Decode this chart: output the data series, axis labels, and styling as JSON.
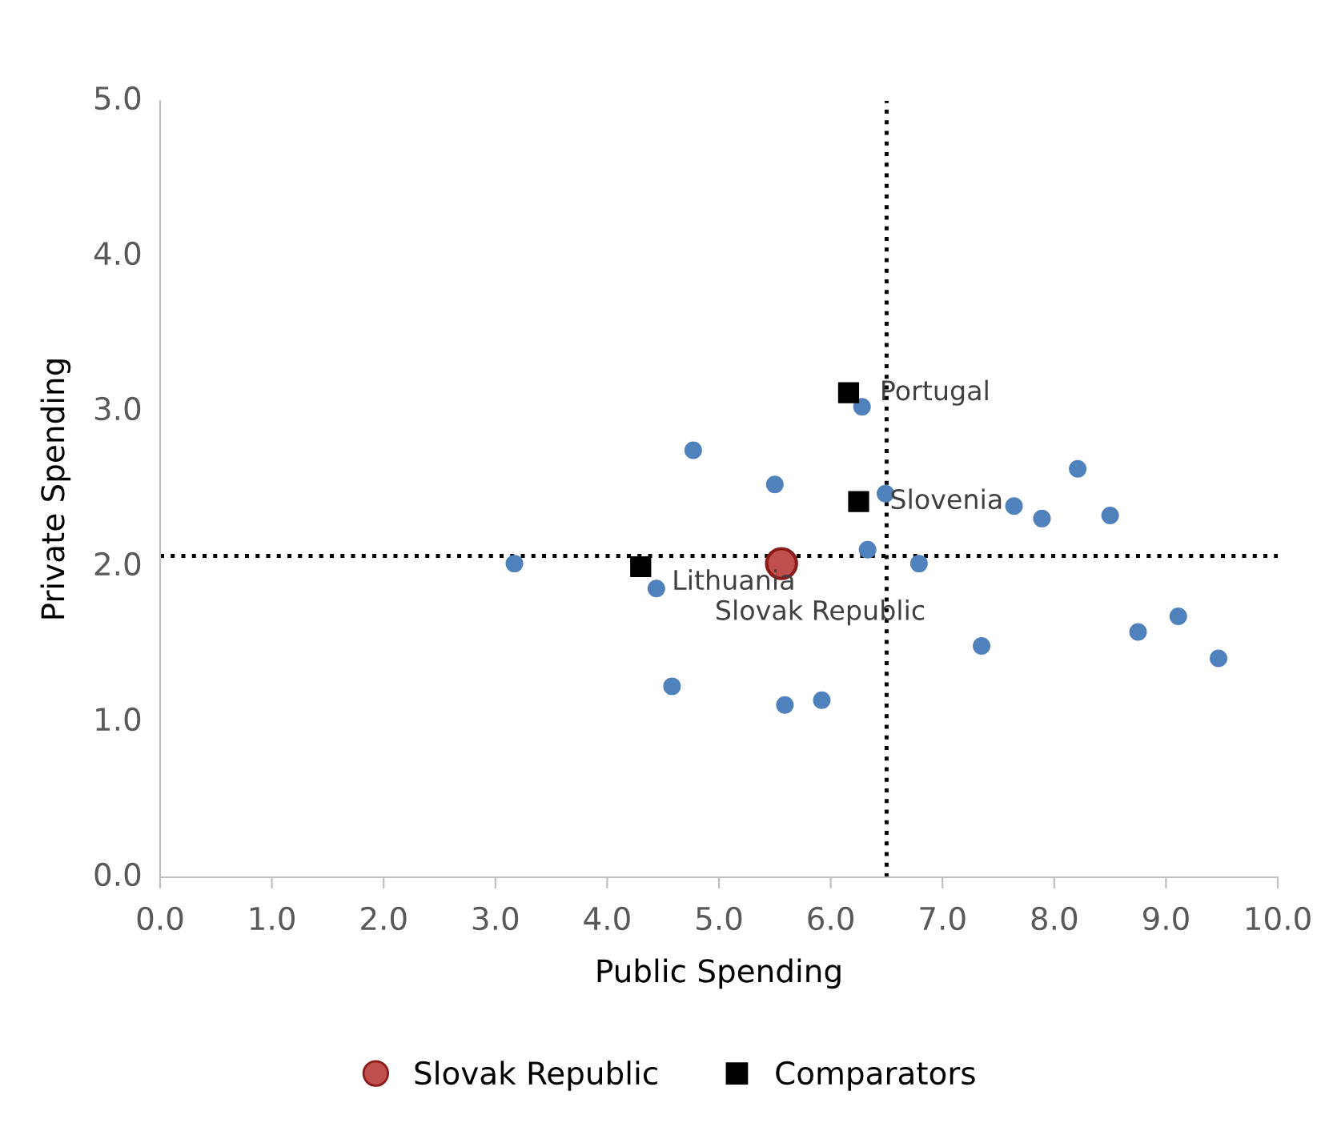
{
  "chart_data": {
    "type": "scatter",
    "xlabel": "Public Spending",
    "ylabel": "Private Spending",
    "xlim": [
      0,
      10
    ],
    "ylim": [
      0,
      5
    ],
    "xticks": [
      {
        "value": 0,
        "label": "0.0"
      },
      {
        "value": 1,
        "label": "1.0"
      },
      {
        "value": 2,
        "label": "2.0"
      },
      {
        "value": 3,
        "label": "3.0"
      },
      {
        "value": 4,
        "label": "4.0"
      },
      {
        "value": 5,
        "label": "5.0"
      },
      {
        "value": 6,
        "label": "6.0"
      },
      {
        "value": 7,
        "label": "7.0"
      },
      {
        "value": 8,
        "label": "8.0"
      },
      {
        "value": 9,
        "label": "9.0"
      },
      {
        "value": 10,
        "label": "10.0"
      }
    ],
    "yticks": [
      {
        "value": 0,
        "label": "0.0"
      },
      {
        "value": 1,
        "label": "1.0"
      },
      {
        "value": 2,
        "label": "2.0"
      },
      {
        "value": 3,
        "label": "3.0"
      },
      {
        "value": 4,
        "label": "4.0"
      },
      {
        "value": 5,
        "label": "5.0"
      }
    ],
    "grid": false,
    "legend": "bottom",
    "series": [
      {
        "color": "#4f81bd",
        "x": [
          3.17,
          4.77,
          4.44,
          4.58,
          5.5,
          5.59,
          5.92,
          6.28,
          6.49,
          6.33,
          6.79,
          7.35,
          7.64,
          7.89,
          8.21,
          8.5,
          8.75,
          9.11,
          9.47
        ],
        "values": [
          2.02,
          2.75,
          1.86,
          1.23,
          2.53,
          1.11,
          1.14,
          3.03,
          2.47,
          2.11,
          2.02,
          1.49,
          2.39,
          2.31,
          2.63,
          2.33,
          1.58,
          1.68,
          1.41
        ]
      },
      {
        "name": "Slovak Republic",
        "color": "#c0504d",
        "x": [
          5.56
        ],
        "values": [
          2.02
        ]
      },
      {
        "name": "Comparators",
        "color": "#000000",
        "x": [
          6.16,
          6.25,
          4.3
        ],
        "values": [
          3.12,
          2.42,
          2.0
        ]
      }
    ],
    "ref_lines": [
      {
        "axis": "x",
        "value": 6.5,
        "color": "#000000",
        "line_style": "dotted"
      },
      {
        "axis": "y",
        "value": 2.07,
        "color": "#000000",
        "line_style": "dotted"
      }
    ],
    "annotations": [
      {
        "text": "Portugal",
        "x": 6.16,
        "y": 3.12
      },
      {
        "text": "Slovenia",
        "x": 6.25,
        "y": 2.42
      },
      {
        "text": "Lithuania",
        "x": 4.3,
        "y": 2.0
      },
      {
        "text": "Slovak Republic",
        "x": 5.56,
        "y": 2.02
      }
    ]
  }
}
